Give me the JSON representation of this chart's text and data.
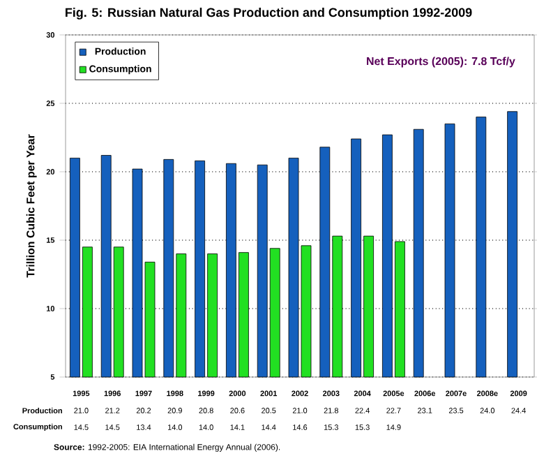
{
  "chart_data": {
    "type": "bar",
    "title": "Fig. 5: Russian Natural Gas Production and Consumption 1992-2009",
    "ylabel": "Trillion Cubic Feet per Year",
    "categories": [
      "1995",
      "1996",
      "1997",
      "1998",
      "1999",
      "2000",
      "2001",
      "2002",
      "2003",
      "2004",
      "2005e",
      "2006e",
      "2007e",
      "2008e",
      "2009"
    ],
    "series": [
      {
        "name": "Production",
        "color": "#1560bd",
        "values": [
          21.0,
          21.2,
          20.2,
          20.9,
          20.8,
          20.6,
          20.5,
          21.0,
          21.8,
          22.4,
          22.7,
          23.1,
          23.5,
          24.0,
          24.4
        ],
        "value_labels": [
          "21.0",
          "21.2",
          "20.2",
          "20.9",
          "20.8",
          "20.6",
          "20.5",
          "21.0",
          "21.8",
          "22.4",
          "22.7",
          "23.1",
          "23.5",
          "24.0",
          "24.4"
        ]
      },
      {
        "name": "Consumption",
        "color": "#22e022",
        "values": [
          14.5,
          14.5,
          13.4,
          14.0,
          14.0,
          14.1,
          14.4,
          14.6,
          15.3,
          15.3,
          14.9,
          null,
          null,
          null,
          null
        ],
        "value_labels": [
          "14.5",
          "14.5",
          "13.4",
          "14.0",
          "14.0",
          "14.1",
          "14.4",
          "14.6",
          "15.3",
          "15.3",
          "14.9",
          null,
          null,
          null,
          null
        ]
      }
    ],
    "ylim": [
      5,
      30
    ],
    "yticks": [
      5,
      10,
      15,
      20,
      25,
      30
    ],
    "grid": "y",
    "legend": "top left",
    "annotations": [
      "Net Exports (2005):  7.8 Tcf/y",
      "**Source:** 1992-2005: EIA International Energy Annual (2006)."
    ]
  }
}
